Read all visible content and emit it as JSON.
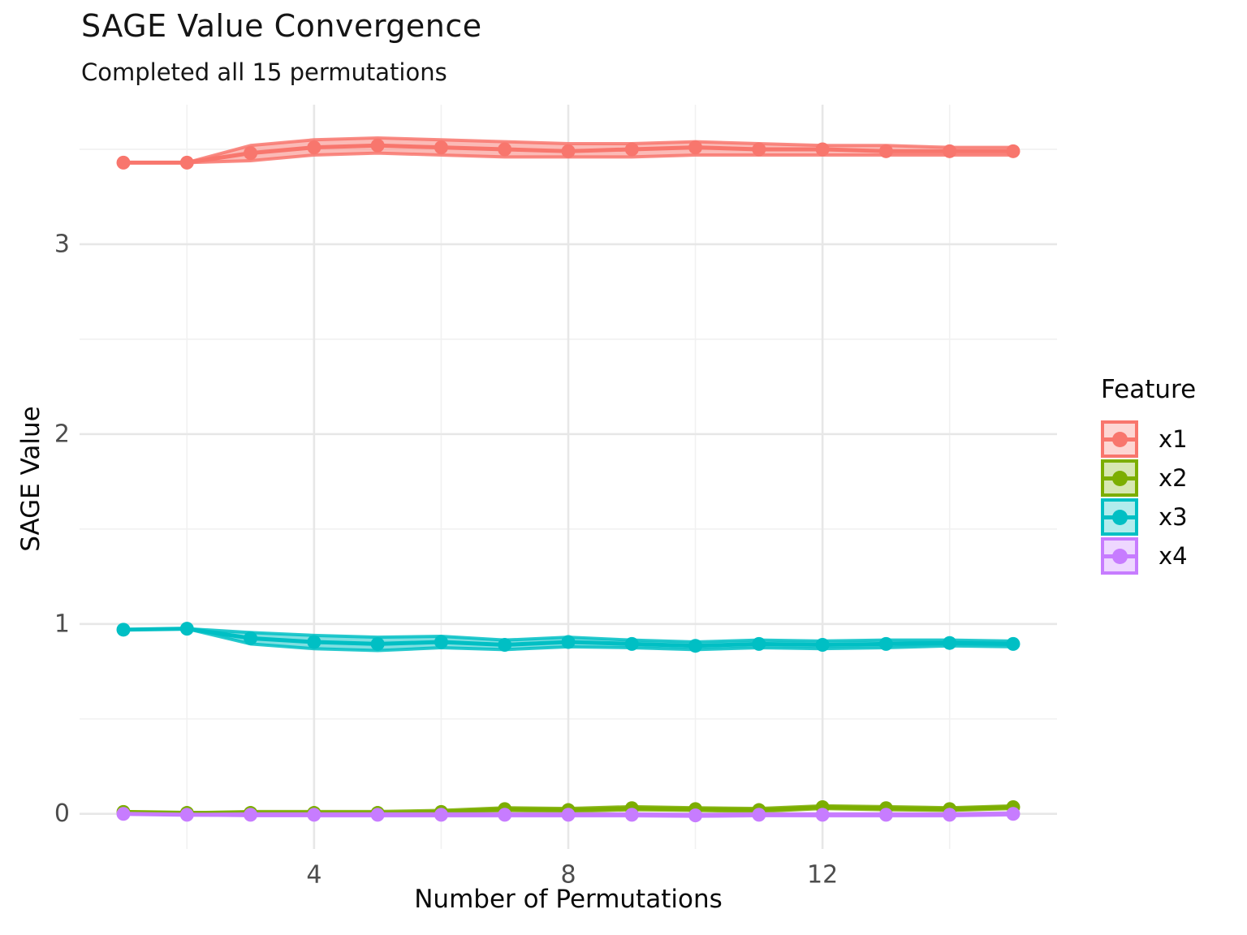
{
  "chart_data": {
    "type": "line",
    "title": "SAGE Value Convergence",
    "subtitle": "Completed all 15 permutations",
    "xlabel": "Number of Permutations",
    "ylabel": "SAGE Value",
    "legend_title": "Feature",
    "legend_position": "right",
    "grid": "on",
    "xlim": [
      0.31,
      15.69
    ],
    "ylim": [
      -0.185,
      3.735
    ],
    "x_ticks": [
      {
        "v": 4,
        "label": "4"
      },
      {
        "v": 8,
        "label": "8"
      },
      {
        "v": 12,
        "label": "12"
      }
    ],
    "x_minor": [
      2,
      6,
      10,
      14
    ],
    "y_ticks": [
      {
        "v": 0,
        "label": "0"
      },
      {
        "v": 1,
        "label": "1"
      },
      {
        "v": 2,
        "label": "2"
      },
      {
        "v": 3,
        "label": "3"
      }
    ],
    "y_minor": [
      0.5,
      1.5,
      2.5,
      3.5
    ],
    "x": [
      1,
      2,
      3,
      4,
      5,
      6,
      7,
      8,
      9,
      10,
      11,
      12,
      13,
      14,
      15
    ],
    "series": [
      {
        "name": "x1",
        "color": "#F8766D",
        "mean": [
          3.43,
          3.43,
          3.48,
          3.51,
          3.52,
          3.51,
          3.5,
          3.49,
          3.5,
          3.51,
          3.5,
          3.5,
          3.49,
          3.49,
          3.49
        ],
        "hi": [
          3.43,
          3.43,
          3.52,
          3.55,
          3.56,
          3.55,
          3.54,
          3.53,
          3.53,
          3.54,
          3.53,
          3.52,
          3.52,
          3.51,
          3.51
        ],
        "lo": [
          3.43,
          3.43,
          3.44,
          3.47,
          3.48,
          3.47,
          3.46,
          3.46,
          3.46,
          3.47,
          3.47,
          3.47,
          3.47,
          3.47,
          3.47
        ]
      },
      {
        "name": "x2",
        "color": "#7CAE00",
        "mean": [
          0.01,
          0.005,
          0.005,
          0.005,
          0.005,
          0.01,
          0.025,
          0.02,
          0.03,
          0.025,
          0.02,
          0.035,
          0.03,
          0.025,
          0.035
        ],
        "hi": [
          0.01,
          0.005,
          0.012,
          0.012,
          0.012,
          0.018,
          0.032,
          0.028,
          0.038,
          0.032,
          0.028,
          0.042,
          0.038,
          0.032,
          0.042
        ],
        "lo": [
          0.01,
          0.005,
          -0.002,
          -0.002,
          -0.002,
          0.002,
          0.018,
          0.012,
          0.022,
          0.018,
          0.012,
          0.028,
          0.022,
          0.018,
          0.028
        ]
      },
      {
        "name": "x3",
        "color": "#00BFC4",
        "mean": [
          0.97,
          0.975,
          0.925,
          0.905,
          0.895,
          0.905,
          0.89,
          0.905,
          0.895,
          0.885,
          0.895,
          0.89,
          0.895,
          0.9,
          0.895
        ],
        "hi": [
          0.97,
          0.975,
          0.955,
          0.94,
          0.93,
          0.935,
          0.915,
          0.93,
          0.915,
          0.905,
          0.915,
          0.91,
          0.915,
          0.915,
          0.91
        ],
        "lo": [
          0.97,
          0.975,
          0.895,
          0.87,
          0.86,
          0.875,
          0.865,
          0.88,
          0.875,
          0.865,
          0.875,
          0.87,
          0.875,
          0.885,
          0.88
        ]
      },
      {
        "name": "x4",
        "color": "#C77CFF",
        "mean": [
          0.0,
          -0.005,
          -0.005,
          -0.005,
          -0.005,
          -0.005,
          -0.005,
          -0.005,
          -0.005,
          -0.008,
          -0.005,
          -0.005,
          -0.005,
          -0.005,
          0.0
        ],
        "hi": [
          0.0,
          -0.005,
          0.0,
          0.0,
          0.0,
          0.0,
          0.0,
          0.0,
          0.0,
          -0.003,
          0.0,
          0.0,
          0.0,
          0.0,
          0.005
        ],
        "lo": [
          0.0,
          -0.005,
          -0.01,
          -0.01,
          -0.01,
          -0.01,
          -0.01,
          -0.01,
          -0.01,
          -0.013,
          -0.01,
          -0.01,
          -0.01,
          -0.01,
          -0.005
        ]
      }
    ],
    "style": {
      "grid_major_color": "#E7E7E7",
      "grid_minor_color": "#F1F1F1",
      "ribbon_opacity": 0.5,
      "bound_line_opacity": 0.85
    }
  }
}
